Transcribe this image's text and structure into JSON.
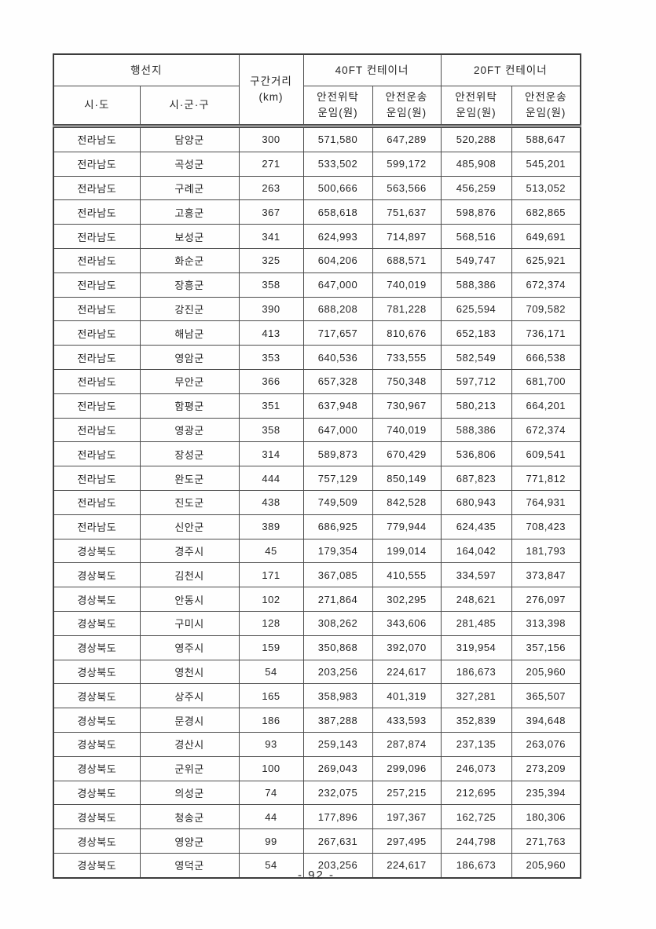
{
  "document": {
    "page_number_label": "- 92 -"
  },
  "table": {
    "header": {
      "destination_group": "행선지",
      "province_col": "시·도",
      "district_col": "시·군·구",
      "distance_col_line1": "구간거리",
      "distance_col_line2": "(km)",
      "container_40ft_group": "40FT 컨테이너",
      "container_20ft_group": "20FT 컨테이너",
      "safe_consignment_line1": "안전위탁",
      "safe_consignment_line2": "운임(원)",
      "safe_transport_line1": "안전운송",
      "safe_transport_line2": "운임(원)"
    },
    "rows": [
      [
        "전라남도",
        "담양군",
        "300",
        "571,580",
        "647,289",
        "520,288",
        "588,647"
      ],
      [
        "전라남도",
        "곡성군",
        "271",
        "533,502",
        "599,172",
        "485,908",
        "545,201"
      ],
      [
        "전라남도",
        "구례군",
        "263",
        "500,666",
        "563,566",
        "456,259",
        "513,052"
      ],
      [
        "전라남도",
        "고흥군",
        "367",
        "658,618",
        "751,637",
        "598,876",
        "682,865"
      ],
      [
        "전라남도",
        "보성군",
        "341",
        "624,993",
        "714,897",
        "568,516",
        "649,691"
      ],
      [
        "전라남도",
        "화순군",
        "325",
        "604,206",
        "688,571",
        "549,747",
        "625,921"
      ],
      [
        "전라남도",
        "장흥군",
        "358",
        "647,000",
        "740,019",
        "588,386",
        "672,374"
      ],
      [
        "전라남도",
        "강진군",
        "390",
        "688,208",
        "781,228",
        "625,594",
        "709,582"
      ],
      [
        "전라남도",
        "해남군",
        "413",
        "717,657",
        "810,676",
        "652,183",
        "736,171"
      ],
      [
        "전라남도",
        "영암군",
        "353",
        "640,536",
        "733,555",
        "582,549",
        "666,538"
      ],
      [
        "전라남도",
        "무안군",
        "366",
        "657,328",
        "750,348",
        "597,712",
        "681,700"
      ],
      [
        "전라남도",
        "함평군",
        "351",
        "637,948",
        "730,967",
        "580,213",
        "664,201"
      ],
      [
        "전라남도",
        "영광군",
        "358",
        "647,000",
        "740,019",
        "588,386",
        "672,374"
      ],
      [
        "전라남도",
        "장성군",
        "314",
        "589,873",
        "670,429",
        "536,806",
        "609,541"
      ],
      [
        "전라남도",
        "완도군",
        "444",
        "757,129",
        "850,149",
        "687,823",
        "771,812"
      ],
      [
        "전라남도",
        "진도군",
        "438",
        "749,509",
        "842,528",
        "680,943",
        "764,931"
      ],
      [
        "전라남도",
        "신안군",
        "389",
        "686,925",
        "779,944",
        "624,435",
        "708,423"
      ],
      [
        "경상북도",
        "경주시",
        "45",
        "179,354",
        "199,014",
        "164,042",
        "181,793"
      ],
      [
        "경상북도",
        "김천시",
        "171",
        "367,085",
        "410,555",
        "334,597",
        "373,847"
      ],
      [
        "경상북도",
        "안동시",
        "102",
        "271,864",
        "302,295",
        "248,621",
        "276,097"
      ],
      [
        "경상북도",
        "구미시",
        "128",
        "308,262",
        "343,606",
        "281,485",
        "313,398"
      ],
      [
        "경상북도",
        "영주시",
        "159",
        "350,868",
        "392,070",
        "319,954",
        "357,156"
      ],
      [
        "경상북도",
        "영천시",
        "54",
        "203,256",
        "224,617",
        "186,673",
        "205,960"
      ],
      [
        "경상북도",
        "상주시",
        "165",
        "358,983",
        "401,319",
        "327,281",
        "365,507"
      ],
      [
        "경상북도",
        "문경시",
        "186",
        "387,288",
        "433,593",
        "352,839",
        "394,648"
      ],
      [
        "경상북도",
        "경산시",
        "93",
        "259,143",
        "287,874",
        "237,135",
        "263,076"
      ],
      [
        "경상북도",
        "군위군",
        "100",
        "269,043",
        "299,096",
        "246,073",
        "273,209"
      ],
      [
        "경상북도",
        "의성군",
        "74",
        "232,075",
        "257,215",
        "212,695",
        "235,394"
      ],
      [
        "경상북도",
        "청송군",
        "44",
        "177,896",
        "197,367",
        "162,725",
        "180,306"
      ],
      [
        "경상북도",
        "영양군",
        "99",
        "267,631",
        "297,495",
        "244,798",
        "271,763"
      ],
      [
        "경상북도",
        "영덕군",
        "54",
        "203,256",
        "224,617",
        "186,673",
        "205,960"
      ]
    ]
  },
  "colors": {
    "border": "#4d4d4d",
    "text": "#242424",
    "background": "#ffffff"
  }
}
